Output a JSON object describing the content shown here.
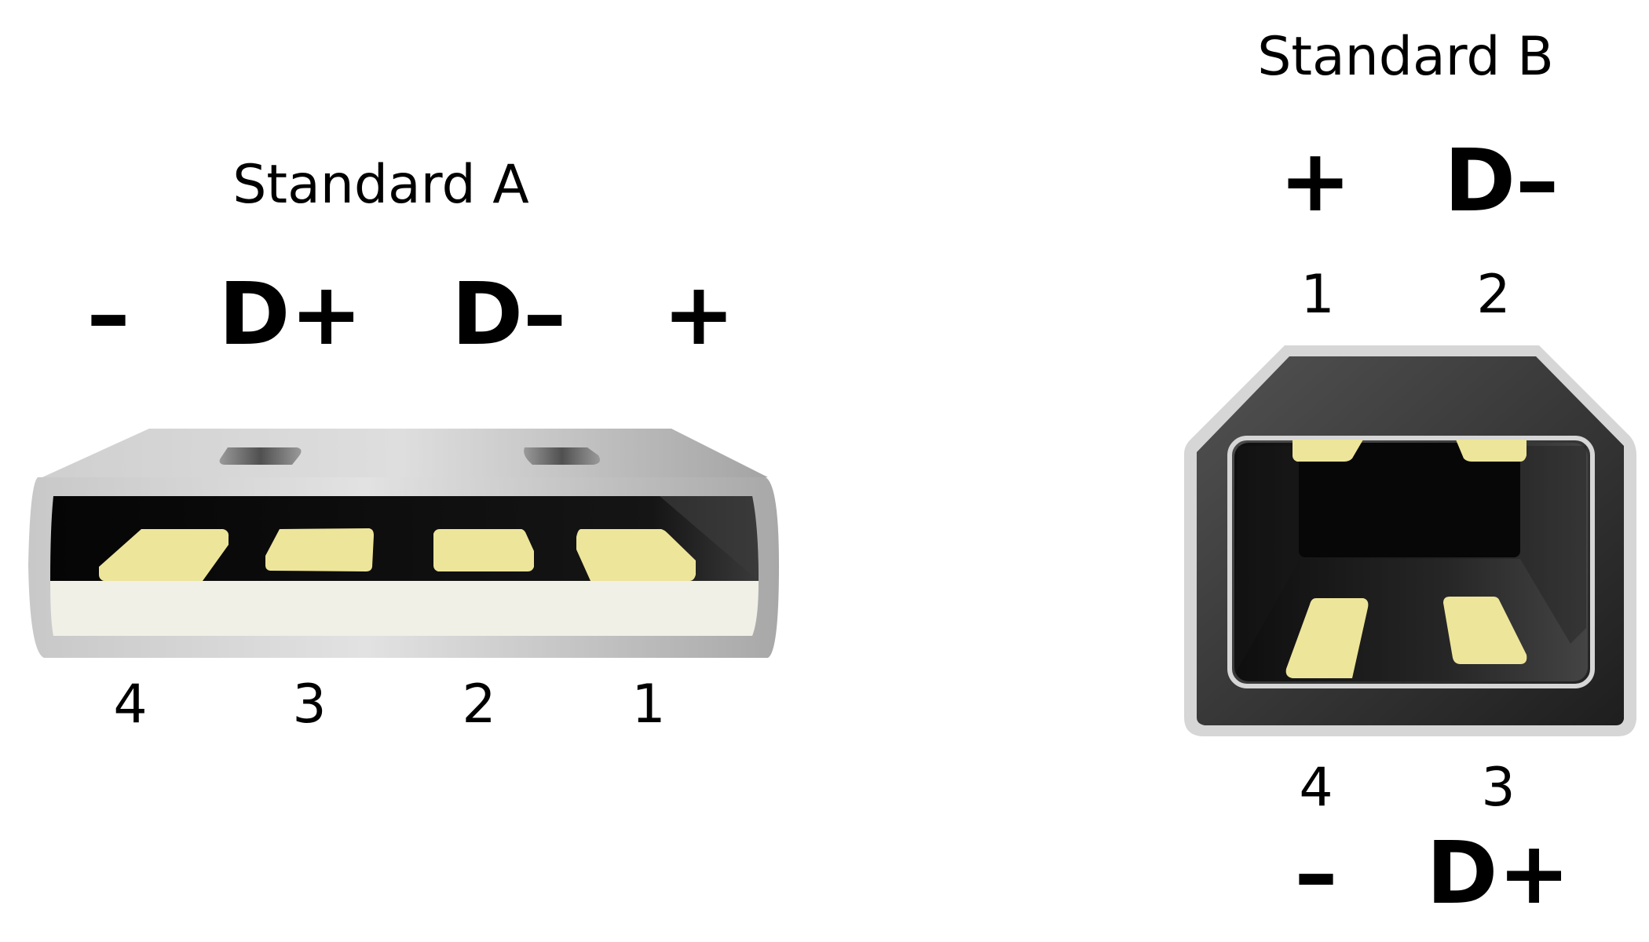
{
  "standard_a": {
    "title": "Standard A",
    "pins": [
      {
        "number": "4",
        "label": "–"
      },
      {
        "number": "3",
        "label": "D+"
      },
      {
        "number": "2",
        "label": "D–"
      },
      {
        "number": "1",
        "label": "+"
      }
    ]
  },
  "standard_b": {
    "title": "Standard B",
    "top_pins": [
      {
        "number": "1",
        "label": "+"
      },
      {
        "number": "2",
        "label": "D–"
      }
    ],
    "bottom_pins": [
      {
        "number": "4",
        "label": "–"
      },
      {
        "number": "3",
        "label": "D+"
      }
    ]
  },
  "colors": {
    "contact": "#ede59a",
    "housing_dark": "#2a2a2a",
    "shell_light": "#d8d8d8",
    "insulator": "#f0f0e6"
  }
}
